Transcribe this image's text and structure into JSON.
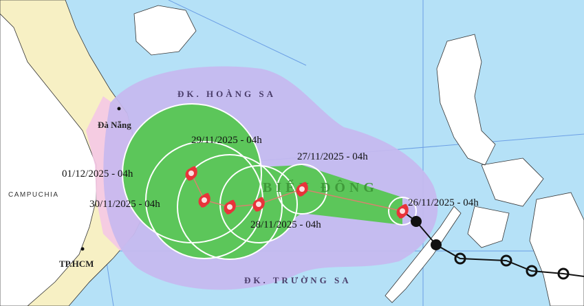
{
  "map": {
    "labels": {
      "paracel": "ĐK. HOÀNG SA",
      "spratly": "ĐK. TRƯỜNG SA",
      "sea": "BIỂN ĐÔNG",
      "danang": "Đà Nẵng",
      "cambodia": "CAMPUCHIA",
      "hcm": "TP.HCM"
    },
    "forecast_times": [
      "26/11/2025 - 04h",
      "27/11/2025 - 04h",
      "28/11/2025 - 04h",
      "29/11/2025 - 04h",
      "30/11/2025 - 04h",
      "01/12/2025 - 04h"
    ],
    "colors": {
      "ocean": "#b5e1f7",
      "land": "#ffffff",
      "vietnam": "#f7f0c4",
      "coast_warning": "#f4c8e6",
      "uncertainty_cone": "#c7b9ef",
      "strong_wind_zone": "#5cc65a",
      "storm_icon": "#e8333a",
      "past_track": "#111111"
    },
    "icons": {
      "forecast_position": "typhoon-symbol-icon",
      "past_strong": "filled-circle-icon",
      "past_weak": "hollow-circle-icon"
    }
  }
}
